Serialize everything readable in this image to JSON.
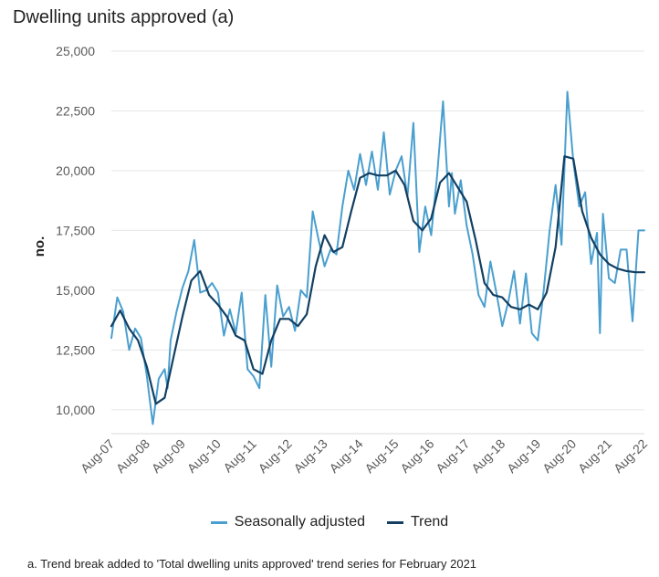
{
  "title": "Dwelling units approved (a)",
  "footnote": "a. Trend break added to 'Total dwelling units approved' trend series for February 2021",
  "colors": {
    "seasonal": "#4a9fcf",
    "trend": "#123f62",
    "grid": "#e6e6e6",
    "axis_text": "#595959"
  },
  "chart_data": {
    "type": "line",
    "ylabel": "no.",
    "xlabel": "",
    "ylim": [
      9000,
      25000
    ],
    "yticks": [
      10000,
      12500,
      15000,
      17500,
      20000,
      22500,
      25000
    ],
    "ytick_labels": [
      "10,000",
      "12,500",
      "15,000",
      "17,500",
      "20,000",
      "22,500",
      "25,000"
    ],
    "x_range": [
      0,
      180
    ],
    "xticks": [
      0,
      12,
      24,
      36,
      48,
      60,
      72,
      84,
      96,
      108,
      120,
      132,
      144,
      156,
      168,
      180
    ],
    "xtick_labels": [
      "Aug-07",
      "Aug-08",
      "Aug-09",
      "Aug-10",
      "Aug-11",
      "Aug-12",
      "Aug-13",
      "Aug-14",
      "Aug-15",
      "Aug-16",
      "Aug-17",
      "Aug-18",
      "Aug-19",
      "Aug-20",
      "Aug-21",
      "Aug-22"
    ],
    "x_note": "x = months since Aug-07",
    "legend_position": "bottom",
    "series": [
      {
        "name": "Seasonally adjusted",
        "x": [
          0,
          2,
          4,
          6,
          8,
          10,
          12,
          14,
          16,
          18,
          19,
          20,
          22,
          24,
          26,
          28,
          30,
          32,
          34,
          36,
          38,
          40,
          42,
          44,
          46,
          48,
          50,
          52,
          54,
          56,
          58,
          60,
          62,
          64,
          66,
          68,
          70,
          72,
          74,
          76,
          78,
          80,
          82,
          84,
          86,
          88,
          90,
          92,
          94,
          96,
          98,
          100,
          102,
          104,
          106,
          108,
          110,
          112,
          114,
          115,
          116,
          118,
          120,
          122,
          124,
          126,
          128,
          130,
          132,
          134,
          136,
          138,
          140,
          142,
          144,
          146,
          148,
          150,
          152,
          154,
          156,
          158,
          160,
          162,
          164,
          165,
          166,
          168,
          170,
          172,
          174,
          176,
          178,
          179,
          180
        ],
        "values": [
          13000,
          14700,
          14100,
          12500,
          13400,
          13000,
          11400,
          9400,
          11300,
          11700,
          10900,
          12900,
          14100,
          15100,
          15800,
          17100,
          14900,
          15000,
          15300,
          14900,
          13100,
          14200,
          13200,
          14900,
          11700,
          11400,
          10900,
          14800,
          11800,
          15200,
          13900,
          14300,
          13300,
          15000,
          14700,
          18300,
          17100,
          16000,
          16700,
          16500,
          18500,
          20000,
          19200,
          20700,
          19400,
          20800,
          19200,
          21600,
          19000,
          20000,
          20600,
          18900,
          22000,
          16600,
          18500,
          17300,
          19800,
          22900,
          18500,
          19900,
          18200,
          19600,
          17700,
          16500,
          14800,
          14300,
          16200,
          14900,
          13500,
          14500,
          15800,
          13600,
          15700,
          13200,
          12900,
          15000,
          17500,
          19400,
          16900,
          23300,
          20400,
          18500,
          19100,
          16100,
          17400,
          13200,
          18200,
          15500,
          15300,
          16700,
          16700,
          13700,
          17500,
          17500,
          17500
        ]
      },
      {
        "name": "Trend",
        "x": [
          0,
          3,
          6,
          9,
          12,
          15,
          18,
          21,
          24,
          27,
          30,
          33,
          36,
          39,
          42,
          45,
          48,
          51,
          54,
          57,
          60,
          63,
          66,
          69,
          72,
          75,
          78,
          81,
          84,
          87,
          90,
          93,
          96,
          99,
          102,
          105,
          108,
          111,
          114,
          117,
          120,
          123,
          126,
          129,
          132,
          135,
          138,
          141,
          144,
          147,
          150,
          153,
          156,
          159,
          162,
          165,
          168,
          171,
          174,
          177,
          180
        ],
        "values": [
          13500,
          14150,
          13400,
          12900,
          11800,
          10250,
          10500,
          12200,
          13900,
          15400,
          15800,
          14800,
          14400,
          13900,
          13100,
          12900,
          11700,
          11500,
          12900,
          13800,
          13800,
          13500,
          14000,
          16000,
          17300,
          16600,
          16800,
          18300,
          19700,
          19900,
          19800,
          19800,
          20000,
          19400,
          17900,
          17500,
          18000,
          19500,
          19900,
          19300,
          18700,
          17100,
          15300,
          14800,
          14700,
          14300,
          14200,
          14400,
          14200,
          14900,
          16800,
          20600,
          20500,
          18300,
          17200,
          16500,
          16100,
          15900,
          15800,
          15750,
          15750
        ]
      }
    ]
  },
  "legend": {
    "seasonal_label": "Seasonally adjusted",
    "trend_label": "Trend"
  }
}
